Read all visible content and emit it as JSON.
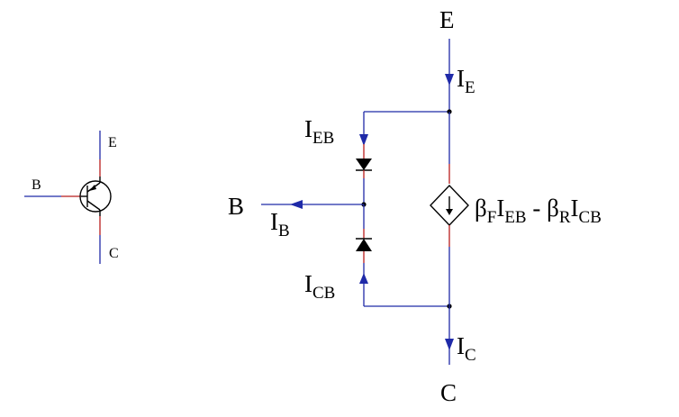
{
  "symbol": {
    "base_label": "B",
    "emitter_label": "E",
    "collector_label": "C"
  },
  "model": {
    "emitter_terminal": "E",
    "collector_terminal": "C",
    "base_terminal": "B",
    "current_emitter": {
      "main": "I",
      "sub": "E"
    },
    "current_collector": {
      "main": "I",
      "sub": "C"
    },
    "current_base": {
      "main": "I",
      "sub": "B"
    },
    "current_eb": {
      "main": "I",
      "sub": "EB"
    },
    "current_cb": {
      "main": "I",
      "sub": "CB"
    },
    "source_expression": {
      "beta1": "β",
      "beta1_sub": "F",
      "i1": "I",
      "i1_sub": "EB",
      "minus": " - ",
      "beta2": "β",
      "beta2_sub": "R",
      "i2": "I",
      "i2_sub": "CB"
    }
  },
  "colors": {
    "wire": "#1f2aa8",
    "lead": "#b81c1c",
    "ink": "#000000"
  }
}
